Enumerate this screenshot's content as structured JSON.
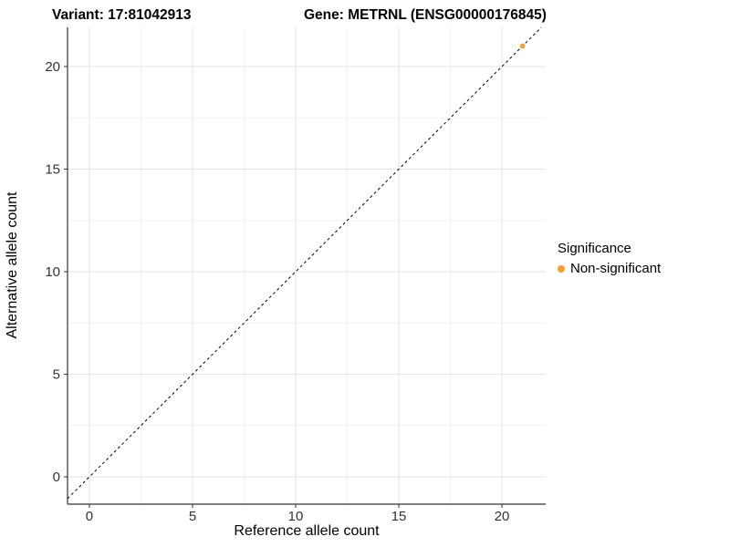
{
  "titles": {
    "left": "Variant: 17:81042913",
    "right": "Gene: METRNL (ENSG00000176845)"
  },
  "legend": {
    "title": "Significance",
    "items": [
      {
        "label": "Non-significant",
        "color": "#F9A02B"
      }
    ]
  },
  "chart_data": {
    "type": "scatter",
    "title": "Variant: 17:81042913  /  Gene: METRNL (ENSG00000176845)",
    "xlabel": "Reference allele count",
    "ylabel": "Alternative allele count",
    "xlim": [
      -1.06,
      22.12
    ],
    "ylim": [
      -1.33,
      21.91
    ],
    "xticks": [
      0,
      5,
      10,
      15,
      20
    ],
    "yticks": [
      0,
      5,
      10,
      15,
      20
    ],
    "xticks_minor": [
      2.5,
      7.5,
      12.5,
      17.5
    ],
    "yticks_minor": [
      2.5,
      7.5,
      12.5,
      17.5
    ],
    "grid": "on",
    "legend_position": "right",
    "series": [
      {
        "name": "Non-significant",
        "color": "#F9A02B",
        "points": [
          {
            "x": 21,
            "y": 21
          }
        ]
      }
    ],
    "abline": {
      "slope": 1,
      "intercept": 0,
      "linetype": "dashed",
      "color": "#000000"
    },
    "colors": {
      "point": "#F9A02B",
      "grid_major": "#E4E4E4",
      "grid_minor": "#F2F2F2",
      "axis_line": "#333333",
      "tick_label": "#333333",
      "panel_background": "#FFFFFF"
    }
  }
}
